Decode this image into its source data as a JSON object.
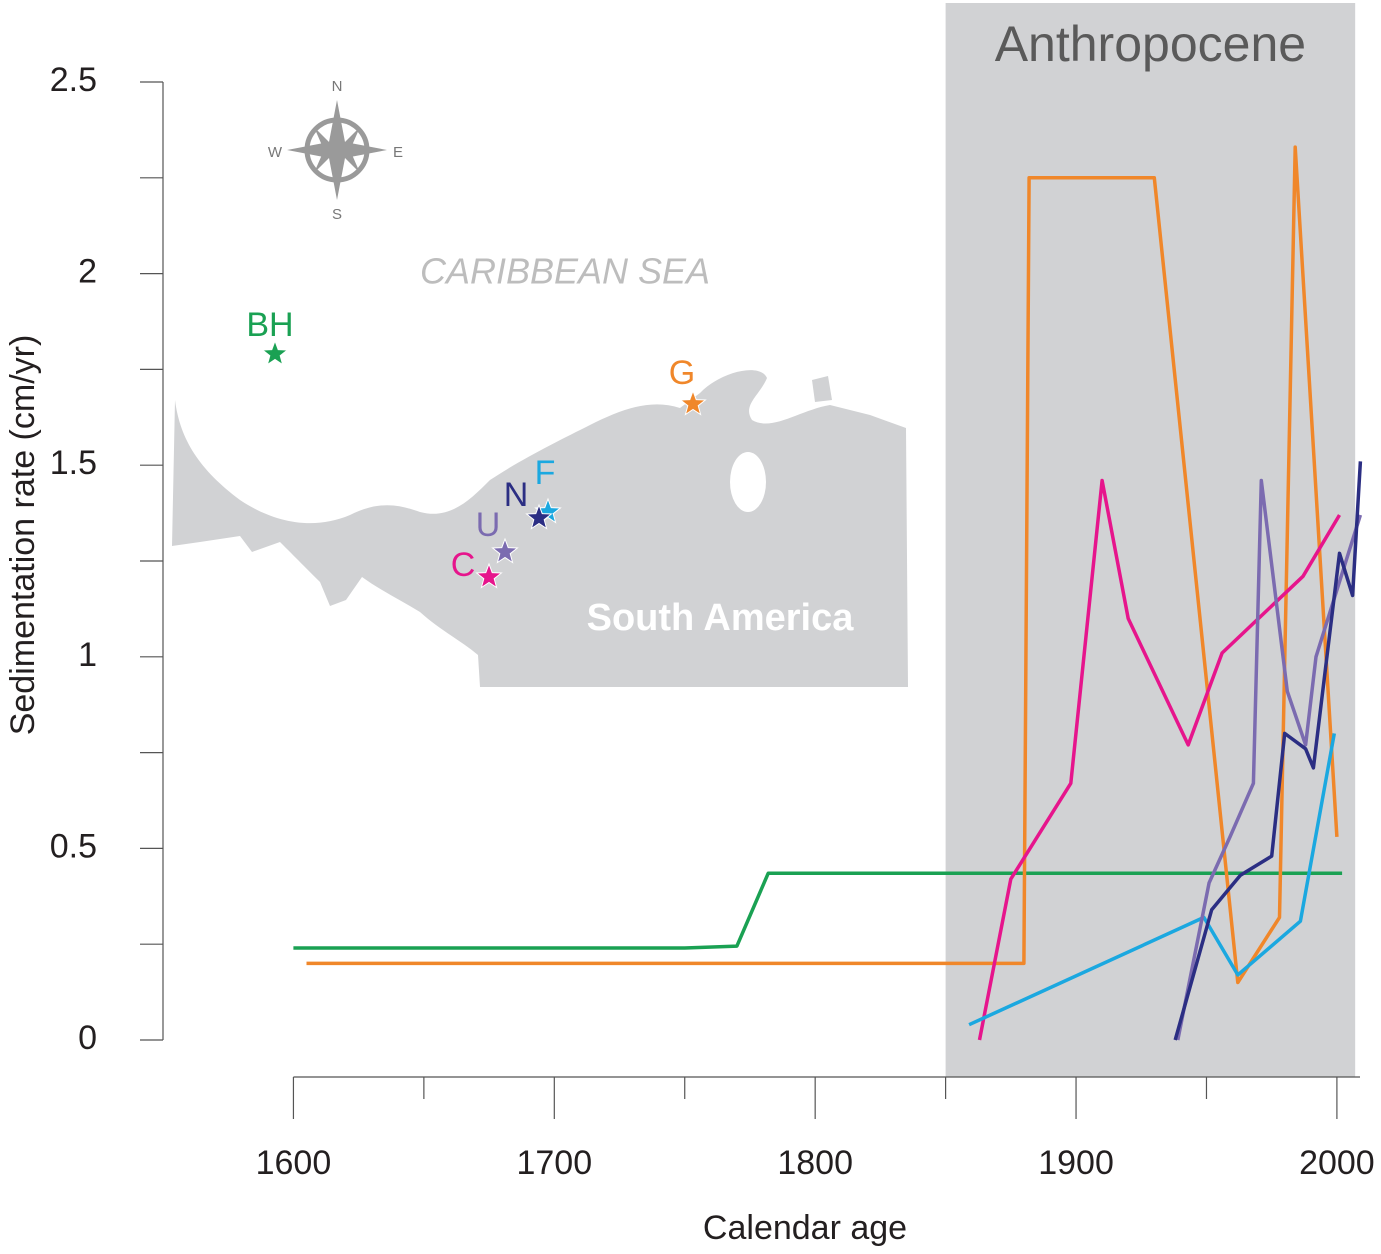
{
  "chart_data": {
    "type": "line",
    "xlabel": "Calendar age",
    "ylabel": "Sedimentation rate (cm/yr)",
    "xlim": [
      1550,
      2010
    ],
    "ylim": [
      0,
      2.5
    ],
    "xticks": [
      1600,
      1700,
      1800,
      1900,
      2000
    ],
    "xminorticks": [
      1650,
      1750,
      1850,
      1950
    ],
    "yticks": [
      0,
      0.5,
      1,
      1.5,
      2,
      2.5
    ],
    "yminorticks": [
      0.25,
      0.75,
      1.25,
      1.75,
      2.25
    ],
    "shaded_region": {
      "label": "Anthropocene",
      "x": [
        1850,
        2007
      ]
    },
    "map": {
      "compass": [
        "N",
        "E",
        "S",
        "W"
      ],
      "sea_label": "CARIBBEAN SEA",
      "land_label": "South America"
    },
    "series": [
      {
        "name": "BH",
        "color": "#1aa153",
        "x": [
          1600,
          1750,
          1770,
          1782,
          2002
        ],
        "values": [
          0.24,
          0.24,
          0.245,
          0.435,
          0.435
        ]
      },
      {
        "name": "G",
        "color": "#f0872a",
        "x": [
          1605,
          1880,
          1882,
          1930,
          1962,
          1978,
          1984,
          2000
        ],
        "values": [
          0.2,
          0.2,
          2.25,
          2.25,
          0.15,
          0.32,
          2.33,
          0.53
        ]
      },
      {
        "name": "C",
        "color": "#e6158c",
        "x": [
          1863,
          1875,
          1898,
          1910,
          1920,
          1943,
          1956,
          1987,
          2001
        ],
        "values": [
          0,
          0.42,
          0.67,
          1.46,
          1.1,
          0.77,
          1.01,
          1.21,
          1.37
        ]
      },
      {
        "name": "F",
        "color": "#1ba8e0",
        "x": [
          1859,
          1949,
          1962,
          1986,
          1999
        ],
        "values": [
          0.04,
          0.32,
          0.17,
          0.31,
          0.8
        ]
      },
      {
        "name": "U",
        "color": "#7b6bb0",
        "x": [
          1939,
          1951,
          1959,
          1968,
          1971,
          1981,
          1988,
          1992,
          2009
        ],
        "values": [
          0,
          0.41,
          0.53,
          0.67,
          1.46,
          0.91,
          0.77,
          1.0,
          1.37
        ]
      },
      {
        "name": "N",
        "color": "#2b2e83",
        "x": [
          1938,
          1952,
          1963,
          1975,
          1980,
          1988,
          1991,
          2001,
          2006,
          2009
        ],
        "values": [
          0,
          0.34,
          0.43,
          0.48,
          0.8,
          0.76,
          0.71,
          1.27,
          1.16,
          1.51
        ]
      }
    ]
  }
}
